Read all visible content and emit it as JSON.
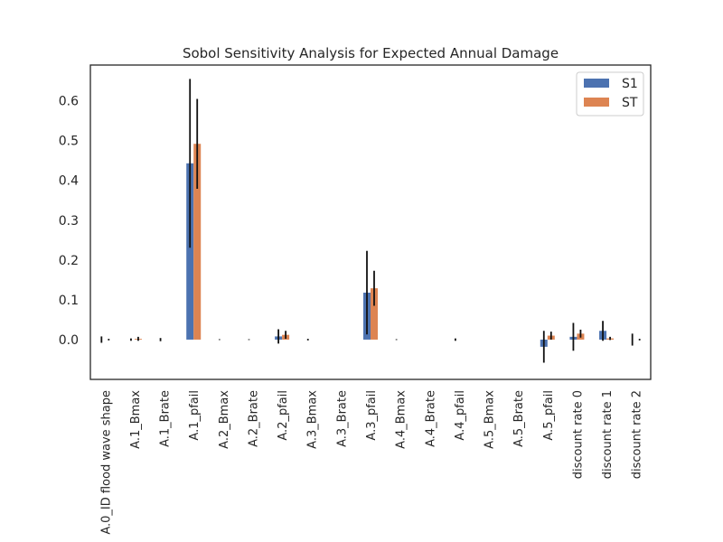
{
  "chart_data": {
    "type": "bar",
    "title": "Sobol Sensitivity Analysis for Expected Annual Damage",
    "xlabel": "",
    "ylabel": "",
    "ylim": [
      -0.1,
      0.69
    ],
    "yticks": [
      "0.0",
      "0.1",
      "0.2",
      "0.3",
      "0.4",
      "0.5",
      "0.6"
    ],
    "legend_position": "top-right",
    "grid": false,
    "categories": [
      "A.0_ID flood wave shape",
      "A.1_Bmax",
      "A.1_Brate",
      "A.1_pfail",
      "A.2_Bmax",
      "A.2_Brate",
      "A.2_pfail",
      "A.3_Bmax",
      "A.3_Brate",
      "A.3_pfail",
      "A.4_Bmax",
      "A.4_Brate",
      "A.4_pfail",
      "A.5_Bmax",
      "A.5_Brate",
      "A.5_pfail",
      "discount rate 0",
      "discount rate 1",
      "discount rate 2"
    ],
    "series": [
      {
        "name": "S1",
        "color": "#4c72b0",
        "values": [
          0.0,
          0.0,
          0.0,
          0.443,
          0.0,
          0.0,
          0.008,
          0.0,
          0.0,
          0.118,
          0.0,
          0.0,
          0.0,
          0.0,
          0.0,
          -0.018,
          0.007,
          0.022,
          0.0
        ],
        "errors": [
          0.008,
          0.003,
          0.004,
          0.212,
          0.001,
          0.001,
          0.018,
          0.002,
          0.0,
          0.105,
          0.001,
          0.0,
          0.003,
          0.0,
          0.0,
          0.04,
          0.035,
          0.025,
          0.015
        ]
      },
      {
        "name": "ST",
        "color": "#dd8452",
        "values": [
          0.0,
          0.002,
          0.0,
          0.492,
          0.0,
          0.0,
          0.012,
          0.0,
          0.0,
          0.129,
          0.0,
          0.0,
          0.0,
          0.0,
          0.0,
          0.01,
          0.015,
          0.003,
          0.0
        ],
        "errors": [
          0.002,
          0.005,
          0.0,
          0.113,
          0.0,
          0.0,
          0.01,
          0.0,
          0.0,
          0.044,
          0.0,
          0.0,
          0.0,
          0.0,
          0.0,
          0.01,
          0.01,
          0.004,
          0.002
        ]
      }
    ]
  }
}
